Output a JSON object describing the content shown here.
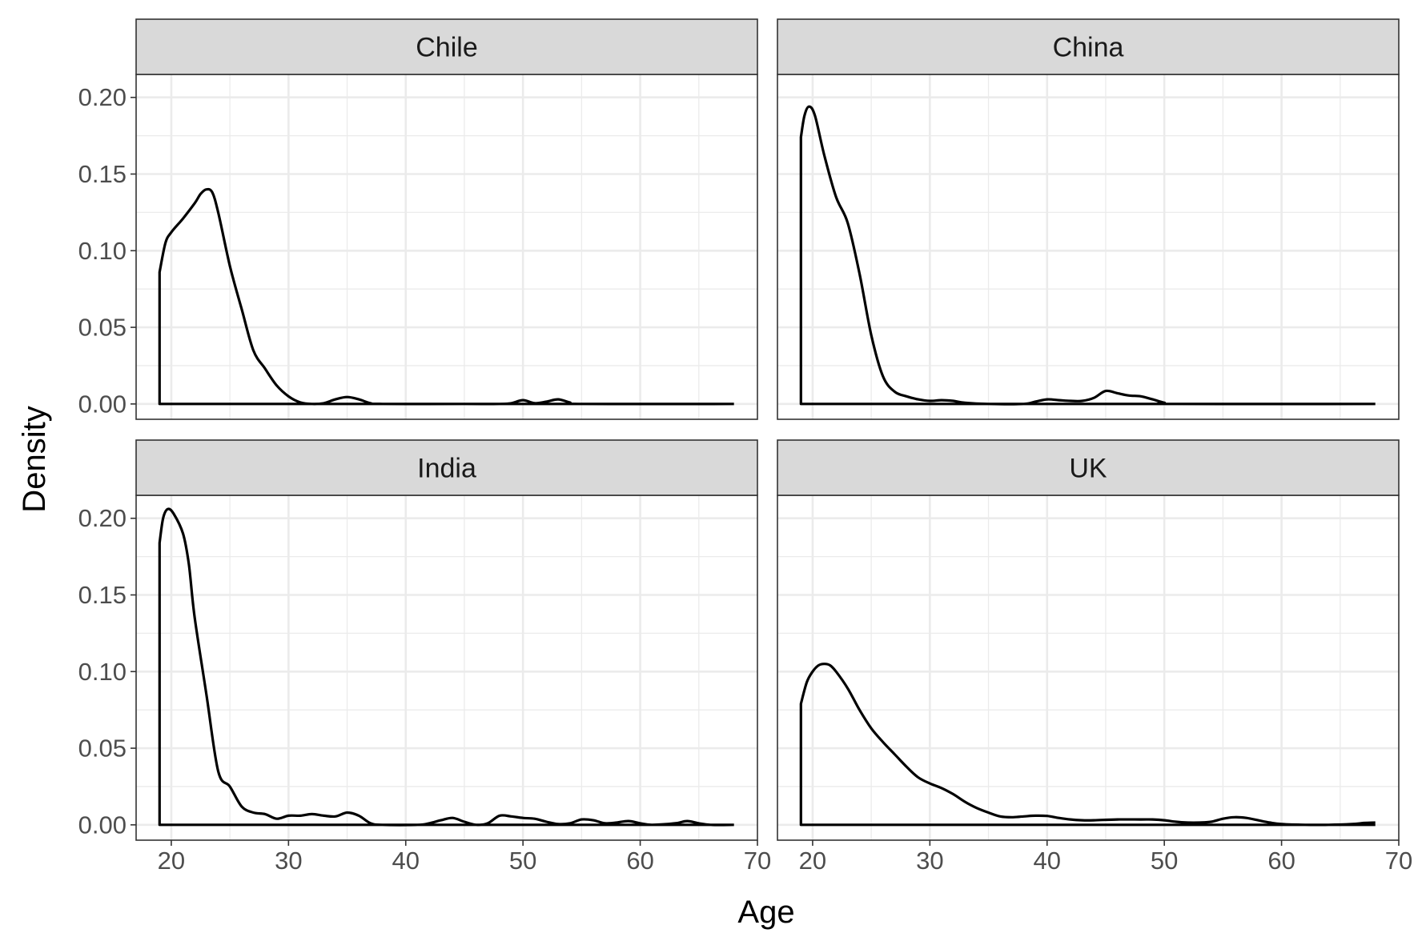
{
  "chart_data": {
    "type": "line",
    "kind": "density",
    "facet_layout": "2x2 wrap",
    "xlabel": "Age",
    "ylabel": "Density",
    "xlim": [
      17,
      70
    ],
    "ylim": [
      -0.01,
      0.215
    ],
    "x_ticks": [
      20,
      30,
      40,
      50,
      60,
      70
    ],
    "x_tick_labels": [
      "20",
      "30",
      "40",
      "50",
      "60",
      "70"
    ],
    "y_ticks": [
      0.0,
      0.05,
      0.1,
      0.15,
      0.2
    ],
    "y_tick_labels": [
      "0.00",
      "0.05",
      "0.10",
      "0.15",
      "0.20"
    ],
    "grid": true,
    "range_x": [
      19,
      68
    ],
    "panels": [
      {
        "label": "Chile",
        "points": [
          [
            19,
            0.086
          ],
          [
            19.5,
            0.105
          ],
          [
            20,
            0.112
          ],
          [
            21,
            0.121
          ],
          [
            22,
            0.131
          ],
          [
            22.5,
            0.137
          ],
          [
            23,
            0.14
          ],
          [
            23.5,
            0.138
          ],
          [
            24,
            0.125
          ],
          [
            25,
            0.09
          ],
          [
            26,
            0.062
          ],
          [
            27,
            0.035
          ],
          [
            28,
            0.023
          ],
          [
            29,
            0.012
          ],
          [
            30,
            0.005
          ],
          [
            31,
            0.001
          ],
          [
            32,
            0.0
          ],
          [
            33,
            0.0005
          ],
          [
            34,
            0.003
          ],
          [
            35,
            0.0045
          ],
          [
            36,
            0.003
          ],
          [
            37,
            0.0005
          ],
          [
            38,
            0
          ],
          [
            45,
            0
          ],
          [
            48,
            0
          ],
          [
            49,
            0.0005
          ],
          [
            50,
            0.0025
          ],
          [
            51,
            0.0005
          ],
          [
            52,
            0.0015
          ],
          [
            53,
            0.003
          ],
          [
            54,
            0.001
          ],
          [
            55,
            0
          ],
          [
            68,
            0
          ]
        ]
      },
      {
        "label": "China",
        "points": [
          [
            19,
            0.174
          ],
          [
            19.3,
            0.188
          ],
          [
            19.7,
            0.194
          ],
          [
            20.2,
            0.188
          ],
          [
            21,
            0.162
          ],
          [
            22,
            0.135
          ],
          [
            23,
            0.118
          ],
          [
            24,
            0.085
          ],
          [
            25,
            0.045
          ],
          [
            26,
            0.018
          ],
          [
            27,
            0.008
          ],
          [
            28,
            0.005
          ],
          [
            29,
            0.003
          ],
          [
            30,
            0.002
          ],
          [
            31,
            0.0025
          ],
          [
            32,
            0.002
          ],
          [
            33,
            0.0008
          ],
          [
            35,
            0.0
          ],
          [
            38,
            0.0
          ],
          [
            39,
            0.0015
          ],
          [
            40,
            0.003
          ],
          [
            41,
            0.0025
          ],
          [
            42,
            0.002
          ],
          [
            43,
            0.002
          ],
          [
            44,
            0.004
          ],
          [
            45,
            0.0085
          ],
          [
            46,
            0.007
          ],
          [
            47,
            0.0055
          ],
          [
            48,
            0.005
          ],
          [
            49,
            0.003
          ],
          [
            50,
            0.0008
          ],
          [
            51,
            0
          ],
          [
            68,
            0
          ]
        ]
      },
      {
        "label": "India",
        "points": [
          [
            19,
            0.184
          ],
          [
            19.3,
            0.2
          ],
          [
            19.7,
            0.206
          ],
          [
            20.2,
            0.203
          ],
          [
            21,
            0.19
          ],
          [
            21.5,
            0.17
          ],
          [
            22,
            0.135
          ],
          [
            23,
            0.085
          ],
          [
            24,
            0.035
          ],
          [
            25,
            0.025
          ],
          [
            26,
            0.012
          ],
          [
            27,
            0.008
          ],
          [
            28,
            0.007
          ],
          [
            29,
            0.004
          ],
          [
            30,
            0.006
          ],
          [
            31,
            0.006
          ],
          [
            32,
            0.007
          ],
          [
            33,
            0.006
          ],
          [
            34,
            0.0055
          ],
          [
            35,
            0.008
          ],
          [
            36,
            0.006
          ],
          [
            37,
            0.001
          ],
          [
            38,
            0.0
          ],
          [
            41,
            0.0
          ],
          [
            42,
            0.001
          ],
          [
            43,
            0.003
          ],
          [
            44,
            0.0045
          ],
          [
            45,
            0.002
          ],
          [
            46,
            0.0
          ],
          [
            47,
            0.001
          ],
          [
            48,
            0.006
          ],
          [
            49,
            0.0055
          ],
          [
            50,
            0.0045
          ],
          [
            51,
            0.004
          ],
          [
            52,
            0.002
          ],
          [
            53,
            0.0005
          ],
          [
            54,
            0.001
          ],
          [
            55,
            0.0035
          ],
          [
            56,
            0.003
          ],
          [
            57,
            0.001
          ],
          [
            58,
            0.0015
          ],
          [
            59,
            0.0025
          ],
          [
            60,
            0.001
          ],
          [
            61,
            0
          ],
          [
            63,
            0.001
          ],
          [
            64,
            0.0025
          ],
          [
            65,
            0.001
          ],
          [
            66,
            0
          ],
          [
            68,
            0
          ]
        ]
      },
      {
        "label": "UK",
        "points": [
          [
            19,
            0.079
          ],
          [
            19.5,
            0.093
          ],
          [
            20,
            0.1
          ],
          [
            20.5,
            0.104
          ],
          [
            21,
            0.105
          ],
          [
            21.5,
            0.104
          ],
          [
            22,
            0.1
          ],
          [
            23,
            0.089
          ],
          [
            24,
            0.075
          ],
          [
            25,
            0.063
          ],
          [
            26,
            0.054
          ],
          [
            27,
            0.046
          ],
          [
            28,
            0.038
          ],
          [
            29,
            0.031
          ],
          [
            30,
            0.027
          ],
          [
            31,
            0.024
          ],
          [
            32,
            0.02
          ],
          [
            33,
            0.015
          ],
          [
            34,
            0.011
          ],
          [
            35,
            0.008
          ],
          [
            36,
            0.0055
          ],
          [
            37,
            0.005
          ],
          [
            38,
            0.0055
          ],
          [
            39,
            0.006
          ],
          [
            40,
            0.0058
          ],
          [
            41,
            0.0045
          ],
          [
            42,
            0.0035
          ],
          [
            43,
            0.003
          ],
          [
            44,
            0.003
          ],
          [
            46,
            0.0035
          ],
          [
            48,
            0.0035
          ],
          [
            49,
            0.0035
          ],
          [
            50,
            0.003
          ],
          [
            51,
            0.002
          ],
          [
            52,
            0.0015
          ],
          [
            53,
            0.0015
          ],
          [
            54,
            0.002
          ],
          [
            55,
            0.004
          ],
          [
            56,
            0.005
          ],
          [
            57,
            0.0045
          ],
          [
            58,
            0.003
          ],
          [
            59,
            0.0015
          ],
          [
            60,
            0.0005
          ],
          [
            62,
            0.0
          ],
          [
            64,
            0.0
          ],
          [
            66,
            0.0005
          ],
          [
            67,
            0.0012
          ],
          [
            68,
            0.0015
          ]
        ]
      }
    ]
  }
}
